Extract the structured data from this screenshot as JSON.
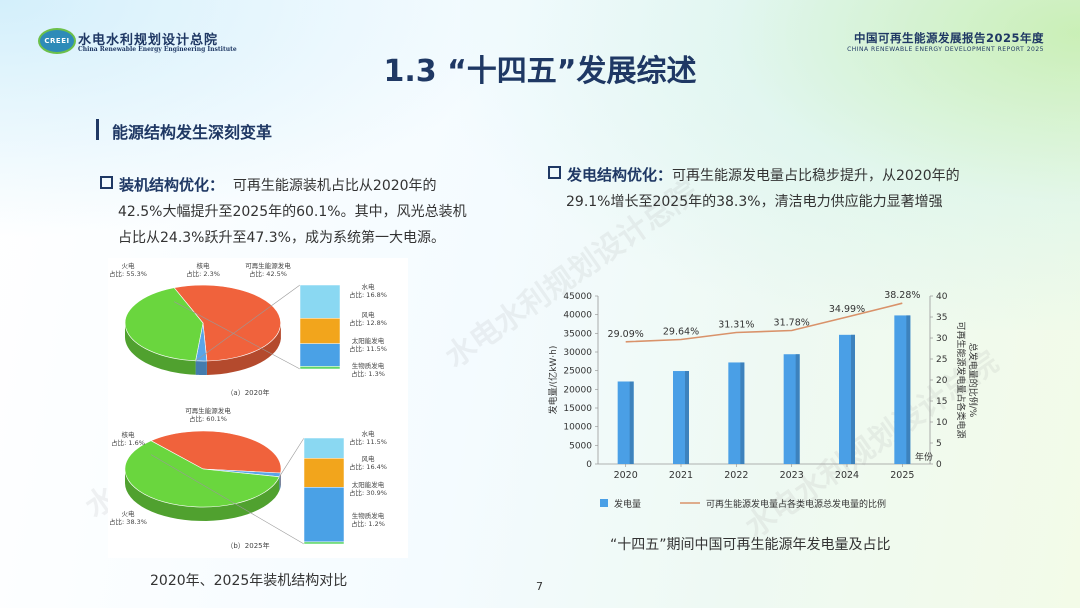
{
  "header": {
    "org_name": "水电水利规划设计总院",
    "org_name_en": "China Renewable Energy Engineering Institute",
    "logo_text": "CREEI",
    "report_title": "中国可再生能源发展报告2025年度",
    "report_title_en": "CHINA RENEWABLE ENERGY DEVELOPMENT REPORT 2025"
  },
  "title": "1.3 “十四五”发展综述",
  "section_title": "能源结构发生深刻变革",
  "left": {
    "label": "装机结构优化：",
    "text1": "可再生能源装机占比从2020年的",
    "text2": "42.5%大幅提升至2025年的60.1%。其中，风光总装机",
    "text3": "占比从24.3%跃升至47.3%，成为系统第一大电源。"
  },
  "right": {
    "label": "发电结构优化：",
    "text1": "可再生能源发电量占比稳步提升，从2020年的",
    "text2": "29.1%增长至2025年的38.3%，清洁电力供应能力显著增强"
  },
  "pies": [
    {
      "caption": "（a）2020年",
      "main": [
        {
          "name": "火电",
          "value_label": "占比: 55.3%",
          "value": 55.3,
          "color": "#f0623c"
        },
        {
          "name": "核电",
          "value_label": "占比: 2.3%",
          "value": 2.3,
          "color": "#5aa5e8"
        },
        {
          "name": "可再生能源发电",
          "value_label": "占比: 42.5%",
          "value": 42.5,
          "color": "#6ad63e"
        }
      ],
      "breakdown": [
        {
          "name": "水电",
          "value_label": "占比: 16.8%",
          "value": 16.8,
          "color": "#8ad8f2"
        },
        {
          "name": "风电",
          "value_label": "占比: 12.8%",
          "value": 12.8,
          "color": "#f2a51c"
        },
        {
          "name": "太阳能发电",
          "value_label": "占比: 11.5%",
          "value": 11.5,
          "color": "#4aa1e6"
        },
        {
          "name": "生物质发电",
          "value_label": "占比: 1.3%",
          "value": 1.3,
          "color": "#5fd66a"
        }
      ]
    },
    {
      "caption": "（b）2025年",
      "main": [
        {
          "name": "火电",
          "value_label": "占比: 38.3%",
          "value": 38.3,
          "color": "#f0623c"
        },
        {
          "name": "核电",
          "value_label": "占比: 1.6%",
          "value": 1.6,
          "color": "#5aa5e8"
        },
        {
          "name": "可再生能源发电",
          "value_label": "占比: 60.1%",
          "value": 60.1,
          "color": "#6ad63e"
        }
      ],
      "breakdown": [
        {
          "name": "水电",
          "value_label": "占比: 11.5%",
          "value": 11.5,
          "color": "#8ad8f2"
        },
        {
          "name": "风电",
          "value_label": "占比: 16.4%",
          "value": 16.4,
          "color": "#f2a51c"
        },
        {
          "name": "太阳能发电",
          "value_label": "占比: 30.9%",
          "value": 30.9,
          "color": "#4aa1e6"
        },
        {
          "name": "生物质发电",
          "value_label": "占比: 1.2%",
          "value": 1.2,
          "color": "#5fd66a"
        }
      ]
    }
  ],
  "pie_caption": "2020年、2025年装机结构对比",
  "chart_caption": "“十四五”期间中国可再生能源年发电量及占比",
  "page_number": "7",
  "watermark": "水电水利规划设计总院",
  "chart_data": {
    "type": "bar",
    "x": [
      "2020",
      "2021",
      "2022",
      "2023",
      "2024",
      "2025"
    ],
    "xlabel": "年份",
    "series": [
      {
        "name": "发电量",
        "type": "bar",
        "axis": "left",
        "color": "#4a9fe6",
        "values": [
          22100,
          24900,
          27200,
          29400,
          34600,
          39800
        ]
      },
      {
        "name": "可再生能源发电量占各类电源总发电量的比例",
        "type": "line",
        "axis": "right",
        "color": "#d9926a",
        "values": [
          29.09,
          29.64,
          31.31,
          31.78,
          34.99,
          38.28
        ],
        "labels": [
          "29.09%",
          "29.64%",
          "31.31%",
          "31.78%",
          "34.99%",
          "38.28%"
        ]
      }
    ],
    "ylabel": "发电量/(亿kW·h)",
    "ylim": [
      0,
      45000
    ],
    "yticks": [
      0,
      5000,
      10000,
      15000,
      20000,
      25000,
      30000,
      35000,
      40000,
      45000
    ],
    "y2label": "可再生能源发电量占各类电源总发电量的比例/%",
    "y2lim": [
      0,
      40
    ],
    "y2ticks": [
      0,
      5,
      10,
      15,
      20,
      25,
      30,
      35,
      40
    ],
    "legend": "bottom"
  }
}
